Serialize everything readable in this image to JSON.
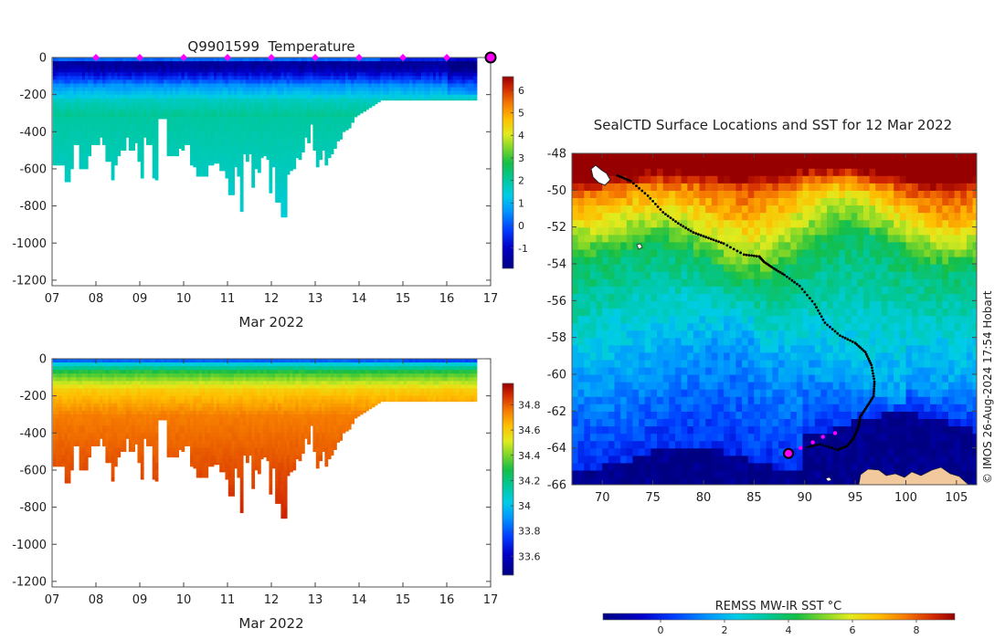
{
  "chart_data": [
    {
      "type": "heatmap",
      "panel": "temperature-section",
      "title": "Q9901599  Temperature",
      "xlabel": "Mar 2022",
      "x_ticks": [
        "07",
        "08",
        "09",
        "10",
        "11",
        "12",
        "13",
        "14",
        "15",
        "16",
        "17"
      ],
      "x_range_days": [
        7,
        17
      ],
      "y_ticks": [
        0,
        -200,
        -400,
        -600,
        -800,
        -1000,
        -1200
      ],
      "ylim": [
        -1230,
        0
      ],
      "profile_days": [
        7.05,
        7.12,
        7.18,
        7.25,
        7.32,
        7.38,
        7.45,
        7.52,
        7.58,
        7.65,
        7.72,
        7.78,
        7.85,
        7.92,
        7.98,
        8.05,
        8.12,
        8.18,
        8.25,
        8.32,
        8.38,
        8.45,
        8.52,
        8.58,
        8.65,
        8.72,
        8.78,
        8.85,
        8.92,
        8.98,
        9.05,
        9.12,
        9.18,
        9.25,
        9.32,
        9.38,
        9.45,
        9.52,
        9.58,
        9.65,
        9.72,
        9.78,
        9.85,
        9.92,
        9.98,
        10.05,
        10.12,
        10.18,
        10.25,
        10.32,
        10.38,
        10.45,
        10.52,
        10.58,
        10.65,
        10.72,
        10.78,
        10.85,
        10.92,
        10.98,
        11.05,
        11.12,
        11.18,
        11.25,
        11.32,
        11.38,
        11.45,
        11.52,
        11.58,
        11.65,
        11.72,
        11.78,
        11.85,
        11.92,
        11.98,
        12.05,
        12.12,
        12.18,
        12.25,
        12.32,
        12.38,
        12.45,
        12.52,
        12.58,
        12.65,
        12.72,
        12.78,
        12.85,
        12.92,
        12.98,
        13.05,
        13.12,
        13.18,
        13.25,
        13.32,
        13.38,
        13.45,
        13.52,
        13.58,
        13.65,
        13.72,
        13.78,
        13.85,
        13.92,
        13.98,
        14.05,
        14.12,
        14.18,
        14.25,
        14.32,
        14.38,
        14.45,
        14.52,
        14.58,
        14.65,
        14.72,
        14.78,
        14.85,
        14.92,
        14.98,
        15.05,
        15.12,
        15.18,
        15.25,
        15.32,
        15.38,
        15.45,
        15.52,
        15.58,
        15.65,
        15.72,
        15.78,
        15.85,
        15.92,
        15.98,
        16.05,
        16.12,
        16.18,
        16.25,
        16.32,
        16.38,
        16.45,
        16.52,
        16.58,
        16.65
      ],
      "profile_max_depth_m": [
        580,
        580,
        580,
        580,
        670,
        670,
        600,
        470,
        470,
        600,
        600,
        600,
        530,
        470,
        470,
        470,
        430,
        470,
        560,
        560,
        660,
        580,
        530,
        500,
        500,
        430,
        500,
        500,
        460,
        560,
        650,
        430,
        470,
        470,
        650,
        660,
        330,
        330,
        330,
        530,
        530,
        530,
        530,
        490,
        500,
        470,
        470,
        580,
        590,
        640,
        640,
        640,
        640,
        580,
        580,
        570,
        570,
        610,
        610,
        650,
        740,
        740,
        590,
        640,
        830,
        520,
        560,
        520,
        700,
        600,
        620,
        540,
        530,
        550,
        730,
        590,
        780,
        780,
        860,
        860,
        630,
        610,
        600,
        540,
        550,
        510,
        430,
        460,
        360,
        500,
        590,
        550,
        500,
        580,
        540,
        520,
        490,
        450,
        440,
        400,
        390,
        380,
        350,
        320,
        310,
        300,
        290,
        280,
        270,
        260,
        250,
        240,
        230,
        230,
        230,
        230,
        230,
        230,
        230,
        230,
        230,
        230,
        230,
        230,
        230,
        230,
        230,
        230,
        230,
        230,
        230,
        230,
        230,
        230,
        230,
        230,
        230,
        230,
        230,
        230,
        230,
        230,
        230,
        230,
        230,
        230,
        230
      ],
      "profile_markers_days": [
        8,
        9,
        10,
        11,
        12,
        13,
        14,
        15,
        16,
        17
      ],
      "colorbar": {
        "min": -1.9,
        "max": 6.6,
        "ticks": [
          -1,
          0,
          1,
          2,
          3,
          4,
          5,
          6
        ]
      }
    },
    {
      "type": "heatmap",
      "panel": "salinity-section",
      "xlabel": "Mar 2022",
      "x_ticks": [
        "07",
        "08",
        "09",
        "10",
        "11",
        "12",
        "13",
        "14",
        "15",
        "16",
        "17"
      ],
      "x_range_days": [
        7,
        17
      ],
      "y_ticks": [
        0,
        -200,
        -400,
        -600,
        -800,
        -1000,
        -1200
      ],
      "ylim": [
        -1230,
        0
      ],
      "colorbar": {
        "min": 33.45,
        "max": 34.97,
        "ticks": [
          33.6,
          33.8,
          34,
          34.2,
          34.4,
          34.6,
          34.8
        ]
      }
    },
    {
      "type": "heatmap",
      "panel": "sst-map",
      "title": "SealCTD Surface Locations and SST for 12 Mar 2022",
      "x_ticks": [
        70,
        75,
        80,
        85,
        90,
        95,
        100,
        105
      ],
      "y_ticks": [
        -48,
        -50,
        -52,
        -54,
        -56,
        -58,
        -60,
        -62,
        -64,
        -66
      ],
      "xlim": [
        67,
        107
      ],
      "ylim": [
        -66,
        -48
      ],
      "track_lon_lat": [
        [
          71.5,
          -49.2
        ],
        [
          72.8,
          -49.5
        ],
        [
          74.5,
          -50.3
        ],
        [
          76.0,
          -51.2
        ],
        [
          77.5,
          -51.8
        ],
        [
          79.0,
          -52.3
        ],
        [
          80.5,
          -52.6
        ],
        [
          82.0,
          -52.9
        ],
        [
          84.0,
          -53.5
        ],
        [
          85.5,
          -53.6
        ],
        [
          86.0,
          -53.9
        ],
        [
          86.8,
          -54.2
        ],
        [
          88.0,
          -54.6
        ],
        [
          89.5,
          -55.2
        ],
        [
          91.0,
          -56.2
        ],
        [
          92.0,
          -57.2
        ],
        [
          93.5,
          -57.9
        ],
        [
          95.0,
          -58.3
        ],
        [
          96.0,
          -58.8
        ],
        [
          96.6,
          -59.5
        ],
        [
          96.9,
          -60.4
        ],
        [
          96.8,
          -61.2
        ],
        [
          96.1,
          -61.8
        ],
        [
          95.5,
          -62.3
        ],
        [
          95.3,
          -62.9
        ],
        [
          94.8,
          -63.5
        ],
        [
          94.2,
          -63.9
        ],
        [
          93.3,
          -64.1
        ],
        [
          91.5,
          -63.8
        ],
        [
          90.0,
          -64.0
        ]
      ],
      "recent_track_lon_lat": [
        [
          88.5,
          -64.2
        ],
        [
          89.6,
          -64.0
        ],
        [
          90.8,
          -63.7
        ],
        [
          91.8,
          -63.4
        ],
        [
          93.0,
          -63.2
        ]
      ],
      "latest_position_lon_lat": [
        88.4,
        -64.3
      ],
      "colorbar_label": "REMSS MW-IR SST °C",
      "colorbar": {
        "min": -1.8,
        "max": 9.2,
        "ticks": [
          0,
          2,
          4,
          6,
          8
        ]
      },
      "credit": "© IMOS 26-Aug-2024 17:54 Hobart"
    }
  ],
  "colors": {
    "profile_marker": "#ff00ff",
    "track": "#000000",
    "land": "#f2c99c"
  }
}
